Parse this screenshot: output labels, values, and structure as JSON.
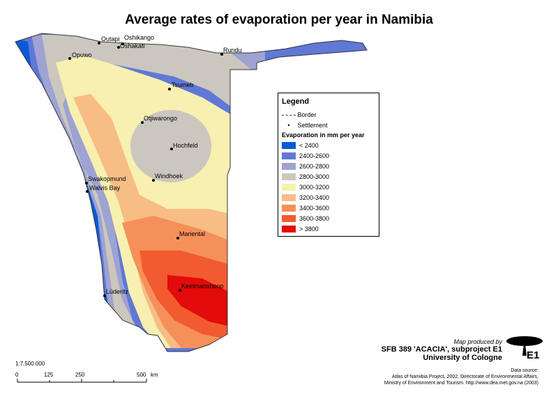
{
  "title": "Average rates of evaporation per year in Namibia",
  "legend": {
    "heading": "Legend",
    "border_label": "Border",
    "settlement_label": "Settlement",
    "sub_heading": "Evaporation in mm per year",
    "classes": [
      {
        "label": "< 2400",
        "color": "#0a5ad8"
      },
      {
        "label": "2400-2600",
        "color": "#6078d6"
      },
      {
        "label": "2600-2800",
        "color": "#9ea3d2"
      },
      {
        "label": "2800-3000",
        "color": "#cbc7be"
      },
      {
        "label": "3000-3200",
        "color": "#f7f0b0"
      },
      {
        "label": "3200-3400",
        "color": "#f7bd85"
      },
      {
        "label": "3400-3600",
        "color": "#f6905a"
      },
      {
        "label": "3600-3800",
        "color": "#f25a30"
      },
      {
        "label": "> 3800",
        "color": "#e30b0b"
      }
    ]
  },
  "settlements": [
    "Outapi",
    "Oshikango",
    "Oshakati",
    "Rundu",
    "Opuwo",
    "Tsumeb",
    "Otjiwarongo",
    "Hochfeld",
    "Swakopmund",
    "Walvis Bay",
    "Windhoek",
    "Mariental",
    "Keetmanshoop",
    "Lüderitz"
  ],
  "credits": {
    "produced_by": "Map produced by",
    "project": "SFB 389 'ACACIA', subproject E1",
    "university": "University of Cologne",
    "logo_text": "E1",
    "data_source_1": "Data source:",
    "data_source_2": "Atlas of Namibia Project, 2002, Directorate of Environmental Affairs,",
    "data_source_3": "Ministry of Environment and Tourism. http://www.dea.met.gov.na (2003)"
  },
  "scale": {
    "ratio": "1:7.500.000",
    "ticks": [
      "0",
      "125",
      "250",
      "500"
    ],
    "unit": "km"
  }
}
